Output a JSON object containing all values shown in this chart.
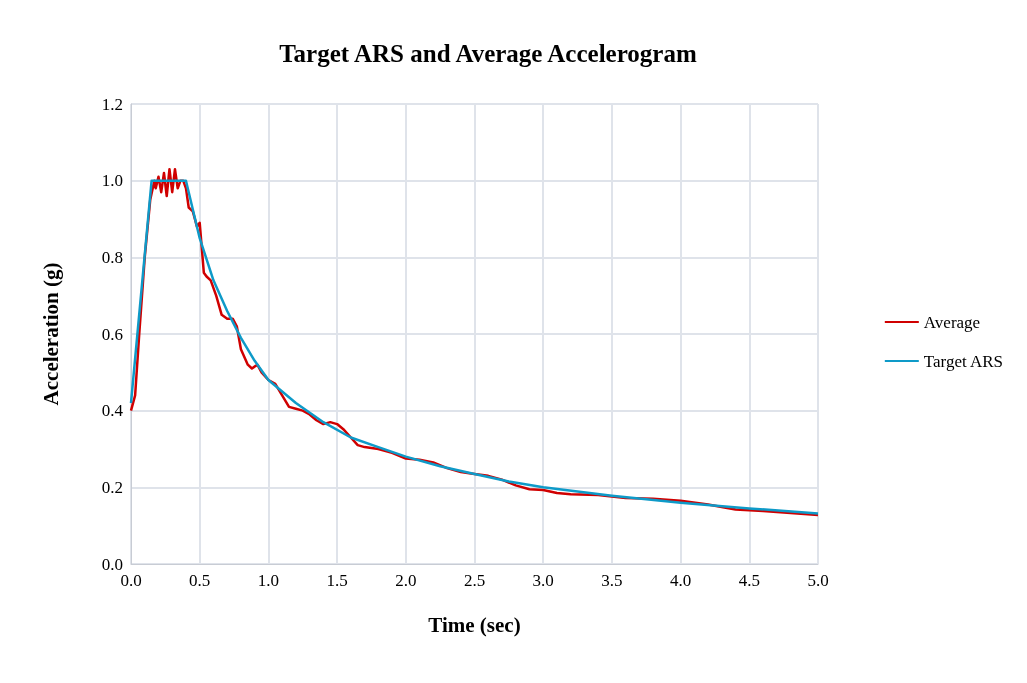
{
  "chart_data": {
    "type": "line",
    "title": "Target ARS and Average Accelerogram",
    "xlabel": "Time (sec)",
    "ylabel": "Acceleration (g)",
    "xlim": [
      0,
      5
    ],
    "ylim": [
      0,
      1.2
    ],
    "xticks": [
      {
        "value": 0,
        "label": "0.0"
      },
      {
        "value": 0.5,
        "label": "0.5"
      },
      {
        "value": 1,
        "label": "1.0"
      },
      {
        "value": 1.5,
        "label": "1.5"
      },
      {
        "value": 2,
        "label": "2.0"
      },
      {
        "value": 2.5,
        "label": "2.5"
      },
      {
        "value": 3,
        "label": "3.0"
      },
      {
        "value": 3.5,
        "label": "3.5"
      },
      {
        "value": 4,
        "label": "4.0"
      },
      {
        "value": 4.5,
        "label": "4.5"
      },
      {
        "value": 5,
        "label": "5.0"
      }
    ],
    "yticks": [
      {
        "value": 0,
        "label": "0.0"
      },
      {
        "value": 0.2,
        "label": "0.2"
      },
      {
        "value": 0.4,
        "label": "0.4"
      },
      {
        "value": 0.6,
        "label": "0.6"
      },
      {
        "value": 0.8,
        "label": "0.8"
      },
      {
        "value": 1,
        "label": "1.0"
      },
      {
        "value": 1.2,
        "label": "1.2"
      }
    ],
    "grid": true,
    "legend": "right",
    "marker": "none",
    "line_style": "solid",
    "series": [
      {
        "name": "Average",
        "color": "#d00000",
        "x": [
          0,
          0.03,
          0.06,
          0.1,
          0.14,
          0.17,
          0.18,
          0.2,
          0.22,
          0.24,
          0.26,
          0.28,
          0.3,
          0.32,
          0.34,
          0.36,
          0.38,
          0.4,
          0.42,
          0.45,
          0.48,
          0.5,
          0.53,
          0.55,
          0.58,
          0.62,
          0.66,
          0.7,
          0.74,
          0.77,
          0.8,
          0.85,
          0.88,
          0.92,
          0.95,
          1,
          1.05,
          1.1,
          1.15,
          1.2,
          1.25,
          1.3,
          1.35,
          1.4,
          1.45,
          1.5,
          1.55,
          1.6,
          1.65,
          1.7,
          1.8,
          1.9,
          2,
          2.1,
          2.2,
          2.3,
          2.4,
          2.5,
          2.6,
          2.7,
          2.8,
          2.9,
          3,
          3.1,
          3.2,
          3.4,
          3.6,
          3.8,
          4,
          4.2,
          4.4,
          4.6,
          4.8,
          5
        ],
        "values": [
          0.4,
          0.44,
          0.6,
          0.8,
          0.95,
          1.0,
          0.98,
          1.01,
          0.97,
          1.02,
          0.96,
          1.03,
          0.97,
          1.03,
          0.98,
          1.0,
          1.0,
          0.98,
          0.93,
          0.92,
          0.88,
          0.89,
          0.76,
          0.75,
          0.74,
          0.7,
          0.65,
          0.64,
          0.64,
          0.62,
          0.56,
          0.52,
          0.51,
          0.52,
          0.5,
          0.48,
          0.47,
          0.44,
          0.41,
          0.405,
          0.4,
          0.39,
          0.375,
          0.365,
          0.37,
          0.365,
          0.35,
          0.33,
          0.31,
          0.305,
          0.3,
          0.29,
          0.275,
          0.272,
          0.265,
          0.25,
          0.24,
          0.235,
          0.23,
          0.22,
          0.205,
          0.195,
          0.193,
          0.185,
          0.182,
          0.18,
          0.172,
          0.17,
          0.165,
          0.155,
          0.142,
          0.138,
          0.133,
          0.128
        ]
      },
      {
        "name": "Target ARS",
        "color": "#0e9ac8",
        "x": [
          0,
          0.15,
          0.4,
          0.5,
          0.6,
          0.7,
          0.8,
          0.9,
          1,
          1.2,
          1.4,
          1.6,
          1.8,
          2,
          2.25,
          2.5,
          2.75,
          3,
          3.5,
          4,
          4.5,
          5
        ],
        "values": [
          0.42,
          1.0,
          1.0,
          0.85,
          0.74,
          0.66,
          0.59,
          0.53,
          0.48,
          0.42,
          0.37,
          0.33,
          0.305,
          0.28,
          0.255,
          0.235,
          0.215,
          0.2,
          0.178,
          0.16,
          0.145,
          0.132
        ]
      }
    ]
  }
}
